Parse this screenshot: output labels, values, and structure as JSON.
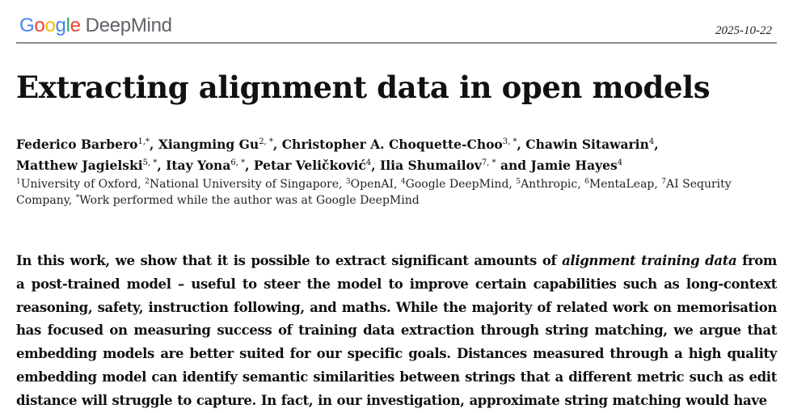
{
  "header": {
    "logo": {
      "google_letters": [
        "G",
        "o",
        "o",
        "g",
        "l",
        "e"
      ],
      "product": "DeepMind",
      "colors": {
        "blue": "#4285F4",
        "red": "#EA4335",
        "yellow": "#FBBC05",
        "green": "#34A853",
        "gray": "#5f6368"
      }
    },
    "date": "2025-10-22"
  },
  "title": "Extracting alignment data in open models",
  "authors": [
    {
      "name": "Federico Barbero",
      "sup": "1,*",
      "sep": ", "
    },
    {
      "name": "Xiangming Gu",
      "sup": "2, *",
      "sep": ", "
    },
    {
      "name": "Christopher A. Choquette-Choo",
      "sup": "3, *",
      "sep": ", "
    },
    {
      "name": "Chawin Sitawarin",
      "sup": "4",
      "sep": ","
    },
    {
      "name": "Matthew Jagielski",
      "sup": "5, *",
      "sep": ", "
    },
    {
      "name": "Itay Yona",
      "sup": "6, *",
      "sep": ", "
    },
    {
      "name": "Petar Veličković",
      "sup": "4",
      "sep": ", "
    },
    {
      "name": "Ilia Shumailov",
      "sup": "7, *",
      "sep": " and "
    },
    {
      "name": "Jamie Hayes",
      "sup": "4",
      "sep": ""
    }
  ],
  "affiliations": [
    {
      "sup": "1",
      "text": "University of Oxford, "
    },
    {
      "sup": "2",
      "text": "National University of Singapore, "
    },
    {
      "sup": "3",
      "text": "OpenAI, "
    },
    {
      "sup": "4",
      "text": "Google DeepMind, "
    },
    {
      "sup": "5",
      "text": "Anthropic, "
    },
    {
      "sup": "6",
      "text": "MentaLeap, "
    },
    {
      "sup": "7",
      "text": "AI Sequrity Company, "
    },
    {
      "sup": "*",
      "text": "Work performed while the author was at Google DeepMind"
    }
  ],
  "abstract": {
    "before_italic": "In this work, we show that it is possible to extract significant amounts of ",
    "italic": "alignment training data",
    "after_italic": " from a post-trained model – useful to steer the model to improve certain capabilities such as long-context reasoning, safety, instruction following, and maths. While the majority of related work on memorisation has focused on measuring success of training data extraction through string matching, we argue that embedding models are better suited for our specific goals. Distances measured through a high quality embedding model can identify semantic similarities between strings that a different metric such as edit distance will struggle to capture. In fact, in our investigation, approximate string matching would have"
  }
}
